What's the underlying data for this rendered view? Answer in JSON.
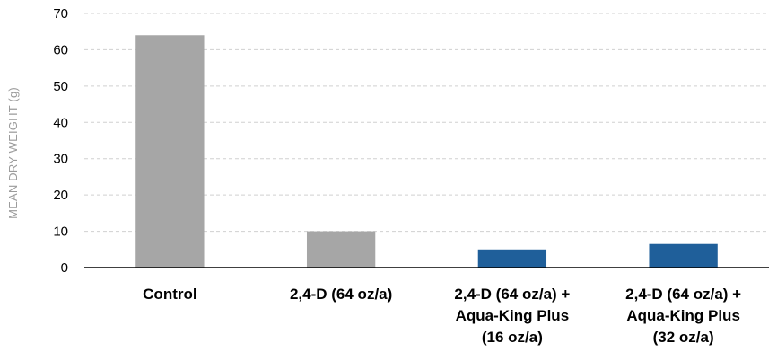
{
  "chart_data": {
    "type": "bar",
    "title": "",
    "xlabel": "",
    "ylabel": "MEAN DRY WEIGHT (g)",
    "ylim": [
      0,
      70
    ],
    "yticks": [
      0,
      10,
      20,
      30,
      40,
      50,
      60,
      70
    ],
    "grid": true,
    "categories": [
      [
        "Control"
      ],
      [
        "2,4-D (64 oz/a)"
      ],
      [
        "2,4-D (64 oz/a) +",
        "Aqua-King Plus",
        "(16 oz/a)"
      ],
      [
        "2,4-D (64 oz/a) +",
        "Aqua-King Plus",
        "(32 oz/a)"
      ]
    ],
    "values": [
      64,
      10,
      5,
      6.5
    ],
    "colors": [
      "#a6a6a6",
      "#a6a6a6",
      "#1f5f9a",
      "#1f5f9a"
    ]
  }
}
